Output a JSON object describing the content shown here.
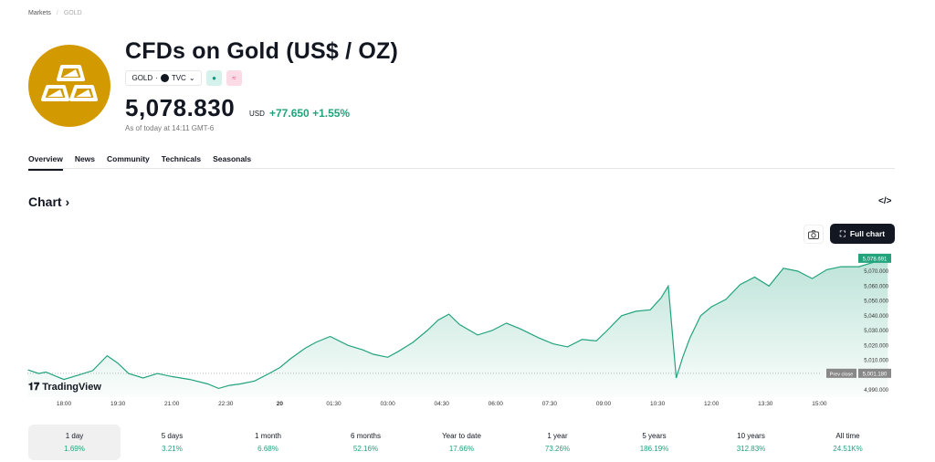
{
  "breadcrumb": [
    "Markets",
    "GOLD"
  ],
  "header": {
    "title": "CFDs on Gold (US$ / OZ)",
    "symbol": "GOLD",
    "exchange": "TVC",
    "price": "5,078.830",
    "currency": "USD",
    "change": "+77.650",
    "change_pct": "+1.55%",
    "as_of": "As of today at 14:11 GMT-6"
  },
  "tabs": [
    "Overview",
    "News",
    "Community",
    "Technicals",
    "Seasonals"
  ],
  "chart_section": {
    "title": "Chart",
    "full_chart": "Full chart",
    "last_label": "5,078.691",
    "prev_close_label": "Prev close",
    "prev_close_value": "5,001.180",
    "watermark": "TradingView"
  },
  "colors": {
    "accent": "#22a37c",
    "logo": "#d39a00"
  },
  "chart_data": {
    "type": "area",
    "x_ticks": [
      "18:00",
      "19:30",
      "21:00",
      "22:30",
      "20",
      "01:30",
      "03:00",
      "04:30",
      "06:00",
      "07:30",
      "09:00",
      "10:30",
      "12:00",
      "13:30",
      "15:00"
    ],
    "y_ticks": [
      "5,070.000",
      "5,060.000",
      "5,050.000",
      "5,040.000",
      "5,030.000",
      "5,020.000",
      "5,010.000",
      "4,990.000"
    ],
    "y_tick_values": [
      5070,
      5060,
      5050,
      5040,
      5030,
      5020,
      5010,
      4990
    ],
    "ylim": [
      4985,
      5085
    ],
    "xlim_hours_since_1700": [
      0,
      23
    ],
    "prev_close": 5001.18,
    "series": [
      [
        0,
        5003.5
      ],
      [
        0.3,
        5001
      ],
      [
        0.5,
        5002
      ],
      [
        0.8,
        4999
      ],
      [
        1,
        4997
      ],
      [
        1.4,
        5000
      ],
      [
        1.8,
        5003
      ],
      [
        2.2,
        5013
      ],
      [
        2.5,
        5008
      ],
      [
        2.8,
        5001
      ],
      [
        3.2,
        4998
      ],
      [
        3.6,
        5001
      ],
      [
        4,
        4999
      ],
      [
        4.5,
        4997
      ],
      [
        5,
        4994
      ],
      [
        5.3,
        4991
      ],
      [
        5.6,
        4993
      ],
      [
        5.9,
        4994
      ],
      [
        6.3,
        4996
      ],
      [
        6.7,
        5001
      ],
      [
        7,
        5005
      ],
      [
        7.3,
        5011
      ],
      [
        7.7,
        5018
      ],
      [
        8,
        5022
      ],
      [
        8.4,
        5026
      ],
      [
        8.9,
        5020
      ],
      [
        9.3,
        5017
      ],
      [
        9.6,
        5014
      ],
      [
        10,
        5012
      ],
      [
        10.3,
        5016
      ],
      [
        10.7,
        5022
      ],
      [
        11.1,
        5030
      ],
      [
        11.4,
        5037
      ],
      [
        11.7,
        5041
      ],
      [
        12,
        5034
      ],
      [
        12.5,
        5027
      ],
      [
        12.9,
        5030
      ],
      [
        13.3,
        5035
      ],
      [
        13.7,
        5031
      ],
      [
        14.2,
        5025
      ],
      [
        14.6,
        5021
      ],
      [
        15,
        5019
      ],
      [
        15.4,
        5024
      ],
      [
        15.8,
        5023
      ],
      [
        16.1,
        5030
      ],
      [
        16.5,
        5040
      ],
      [
        16.9,
        5043
      ],
      [
        17.3,
        5044
      ],
      [
        17.6,
        5052
      ],
      [
        17.8,
        5060
      ],
      [
        18.02,
        4998
      ],
      [
        18.2,
        5012
      ],
      [
        18.4,
        5025
      ],
      [
        18.7,
        5040
      ],
      [
        19,
        5046
      ],
      [
        19.4,
        5051
      ],
      [
        19.8,
        5061
      ],
      [
        20.2,
        5066
      ],
      [
        20.6,
        5060
      ],
      [
        21,
        5072
      ],
      [
        21.4,
        5070
      ],
      [
        21.8,
        5065
      ],
      [
        22.2,
        5071
      ],
      [
        22.6,
        5073
      ],
      [
        23.1,
        5073
      ],
      [
        23.5,
        5076
      ],
      [
        23.9,
        5078.7
      ]
    ]
  },
  "periods": [
    {
      "label": "1 day",
      "value": "1.69%"
    },
    {
      "label": "5 days",
      "value": "3.21%"
    },
    {
      "label": "1 month",
      "value": "6.68%"
    },
    {
      "label": "6 months",
      "value": "52.16%"
    },
    {
      "label": "Year to date",
      "value": "17.66%"
    },
    {
      "label": "1 year",
      "value": "73.26%"
    },
    {
      "label": "5 years",
      "value": "186.19%"
    },
    {
      "label": "10 years",
      "value": "312.83%"
    },
    {
      "label": "All time",
      "value": "24.51K%"
    }
  ]
}
